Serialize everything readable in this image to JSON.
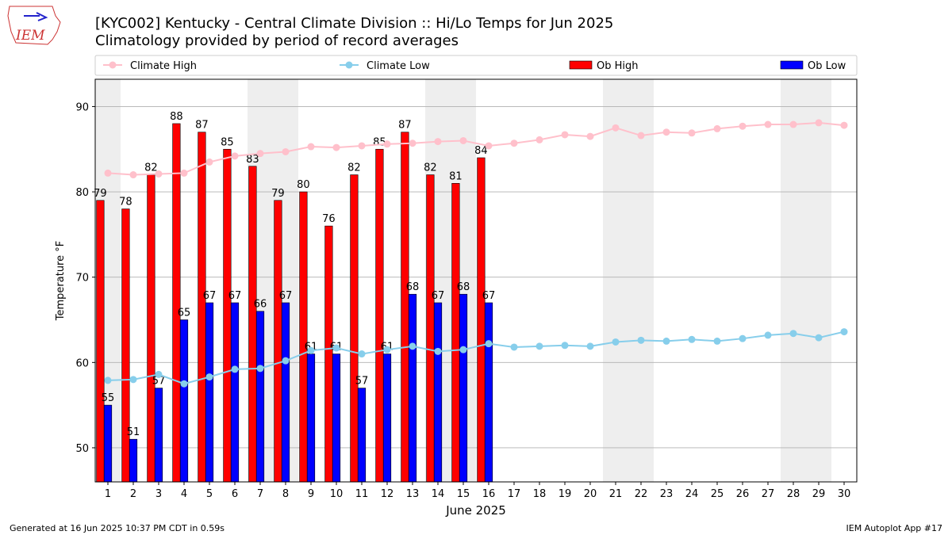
{
  "logo_text": "IEM",
  "chart_data": {
    "type": "bar-line",
    "title": "[KYC002] Kentucky - Central Climate Division :: Hi/Lo Temps for Jun 2025",
    "subtitle": "Climatology provided by period of record averages",
    "x_label": "June 2025",
    "y_label": "Temperature °F",
    "x": [
      1,
      2,
      3,
      4,
      5,
      6,
      7,
      8,
      9,
      10,
      11,
      12,
      13,
      14,
      15,
      16,
      17,
      18,
      19,
      20,
      21,
      22,
      23,
      24,
      25,
      26,
      27,
      28,
      29,
      30
    ],
    "xlim": [
      0.5,
      30.5
    ],
    "xticks": [
      1,
      2,
      3,
      4,
      5,
      6,
      7,
      8,
      9,
      10,
      11,
      12,
      13,
      14,
      15,
      16,
      17,
      18,
      19,
      20,
      21,
      22,
      23,
      24,
      25,
      26,
      27,
      28,
      29,
      30
    ],
    "ylim": [
      46,
      93.2
    ],
    "yticks": [
      50,
      60,
      70,
      80,
      90
    ],
    "grid": true,
    "shaded_days": [
      1,
      7,
      8,
      14,
      15,
      21,
      22,
      28,
      29
    ],
    "series": [
      {
        "name": "Climate High",
        "kind": "line",
        "color": "#ffc0cb",
        "values": [
          82.2,
          82.0,
          82.1,
          82.2,
          83.5,
          84.2,
          84.5,
          84.7,
          85.3,
          85.2,
          85.4,
          85.6,
          85.7,
          85.9,
          86.0,
          85.4,
          85.7,
          86.1,
          86.7,
          86.5,
          87.5,
          86.6,
          87.0,
          86.9,
          87.4,
          87.7,
          87.9,
          87.9,
          88.1,
          87.8
        ]
      },
      {
        "name": "Climate Low",
        "kind": "line",
        "color": "#87ceeb",
        "values": [
          57.9,
          58.0,
          58.6,
          57.5,
          58.3,
          59.2,
          59.3,
          60.2,
          61.4,
          61.7,
          61.0,
          61.5,
          61.9,
          61.3,
          61.5,
          62.2,
          61.8,
          61.9,
          62.0,
          61.9,
          62.4,
          62.6,
          62.5,
          62.7,
          62.5,
          62.8,
          63.2,
          63.4,
          62.9,
          63.6
        ]
      },
      {
        "name": "Ob High",
        "kind": "bar",
        "color": "#ff0000",
        "values": [
          79,
          78,
          82,
          88,
          87,
          85,
          83,
          79,
          80,
          76,
          82,
          85,
          87,
          82,
          81,
          84,
          null,
          null,
          null,
          null,
          null,
          null,
          null,
          null,
          null,
          null,
          null,
          null,
          null,
          null
        ]
      },
      {
        "name": "Ob Low",
        "kind": "bar",
        "color": "#0000ff",
        "values": [
          55,
          51,
          57,
          65,
          67,
          67,
          66,
          67,
          61,
          61,
          57,
          61,
          68,
          67,
          68,
          67,
          null,
          null,
          null,
          null,
          null,
          null,
          null,
          null,
          null,
          null,
          null,
          null,
          null,
          null
        ]
      }
    ]
  },
  "footer": {
    "generated": "Generated at 16 Jun 2025 10:37 PM CDT in 0.59s",
    "app": "IEM Autoplot App #17"
  }
}
